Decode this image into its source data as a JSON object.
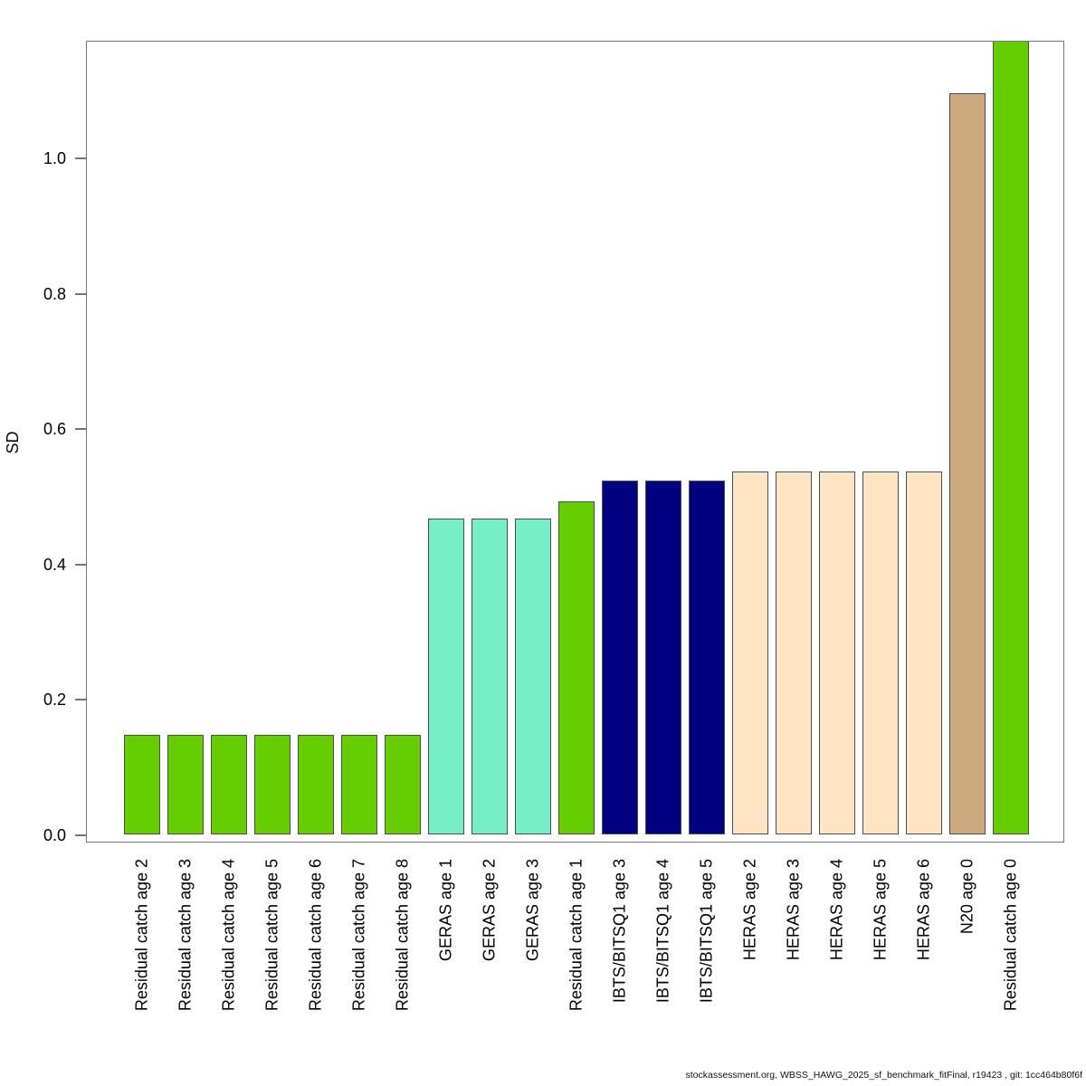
{
  "figure": {
    "footer": "stockassessment.org, WBSS_HAWG_2025_sf_benchmark_fitFinal, r19423 , git: 1cc464b80f6f"
  },
  "chart_data": {
    "type": "bar",
    "title": "",
    "xlabel": "",
    "ylabel": "SD",
    "ylim": [
      0,
      1.172
    ],
    "yticks": [
      0.0,
      0.2,
      0.4,
      0.6,
      0.8,
      1.0
    ],
    "ytick_labels": [
      "0.0",
      "0.2",
      "0.4",
      "0.6",
      "0.8",
      "1.0"
    ],
    "grid": false,
    "legend_position": "none",
    "categories": [
      "Residual catch age 2",
      "Residual catch age 3",
      "Residual catch age 4",
      "Residual catch age 5",
      "Residual catch age 6",
      "Residual catch age 7",
      "Residual catch age 8",
      "GERAS age 1",
      "GERAS age 2",
      "GERAS age 3",
      "Residual catch age 1",
      "IBTS/BITSQ1 age 3",
      "IBTS/BITSQ1 age 4",
      "IBTS/BITSQ1 age 5",
      "HERAS age 2",
      "HERAS age 3",
      "HERAS age 4",
      "HERAS age 5",
      "HERAS age 6",
      "N20 age 0",
      "Residual catch age 0"
    ],
    "values": [
      0.147,
      0.147,
      0.147,
      0.147,
      0.147,
      0.147,
      0.147,
      0.467,
      0.467,
      0.467,
      0.492,
      0.523,
      0.523,
      0.523,
      0.536,
      0.536,
      0.536,
      0.536,
      0.536,
      1.095,
      1.18
    ],
    "bar_colors": [
      "#66CD00",
      "#66CD00",
      "#66CD00",
      "#66CD00",
      "#66CD00",
      "#66CD00",
      "#66CD00",
      "#76EEC6",
      "#76EEC6",
      "#76EEC6",
      "#66CD00",
      "#000080",
      "#000080",
      "#000080",
      "#FFE4C4",
      "#FFE4C4",
      "#FFE4C4",
      "#FFE4C4",
      "#FFE4C4",
      "#CDAA7D",
      "#66CD00"
    ],
    "groups": [
      {
        "name": "Residual catch",
        "color": "#66CD00"
      },
      {
        "name": "GERAS",
        "color": "#76EEC6"
      },
      {
        "name": "IBTS/BITSQ1",
        "color": "#000080"
      },
      {
        "name": "HERAS",
        "color": "#FFE4C4"
      },
      {
        "name": "N20",
        "color": "#CDAA7D"
      }
    ],
    "note_top_bar_clipped": "Residual catch age 0 bar reaches the top edge of the plot box"
  }
}
